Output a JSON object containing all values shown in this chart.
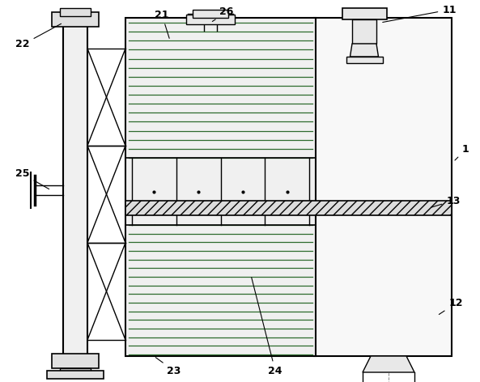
{
  "bg_color": "#ffffff",
  "lc": "#000000",
  "figsize": [
    5.93,
    4.72
  ],
  "dpi": 100,
  "fin_color": "#2d6b2d",
  "hatch_color": "#555555"
}
